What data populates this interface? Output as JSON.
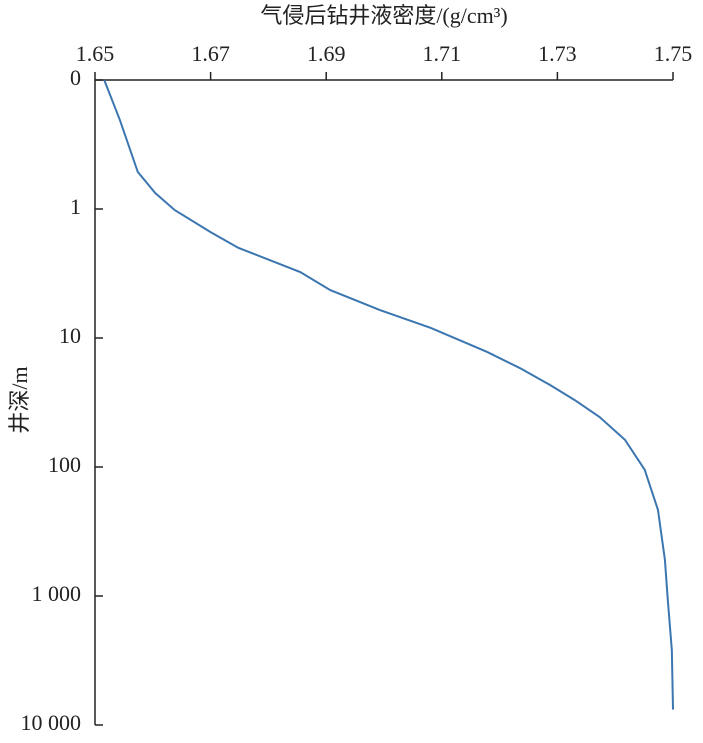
{
  "chart_data": {
    "type": "line",
    "x_label": "气侵后钻井液密度/(g/cm³)",
    "y_label": "井深/m",
    "color": "#3b76b0",
    "x": [
      1.6516,
      1.6543,
      1.6574,
      1.6604,
      1.6638,
      1.67,
      1.6748,
      1.6855,
      1.6907,
      1.6993,
      1.7081,
      1.7178,
      1.7235,
      1.7287,
      1.733,
      1.7373,
      1.7417,
      1.7451,
      1.7474,
      1.7486,
      1.7491,
      1.7498,
      1.75
    ],
    "y": [
      0.1,
      0.204,
      0.516,
      0.75,
      1.02,
      1.51,
      2.0,
      3.08,
      4.25,
      6.07,
      8.36,
      12.8,
      17.1,
      23.1,
      30.3,
      41,
      61.6,
      105,
      215,
      525,
      1072,
      2630,
      7590
    ],
    "xlim": [
      1.65,
      1.75
    ],
    "xticks": [
      1.65,
      1.67,
      1.69,
      1.71,
      1.73,
      1.75
    ],
    "xaxis_position": "top",
    "ylim": [
      0.1,
      10000
    ],
    "yscale": "log",
    "y_inverted": true,
    "yticks": [
      {
        "value": 0.1,
        "label": "0"
      },
      1,
      10,
      100,
      {
        "value": 1000,
        "label": "1 000"
      },
      {
        "value": 10000,
        "label": "10 000"
      }
    ]
  }
}
